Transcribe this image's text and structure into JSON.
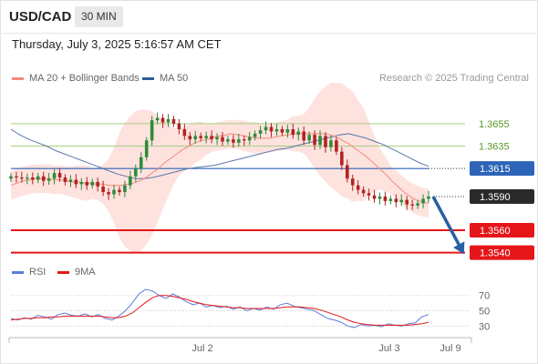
{
  "header": {
    "symbol": "USD/CAD",
    "interval": "30 MIN",
    "datetime": "Thursday, July 3, 2025 5:16:57 AM CET"
  },
  "legend": {
    "ma20_label": "MA 20 + Bollinger Bands",
    "ma50_label": "MA 50",
    "credit": "Research © 2025 Trading Central"
  },
  "rsi_legend": {
    "rsi_label": "RSI",
    "ma_label": "9MA"
  },
  "colors": {
    "up_candle": "#2e8b3a",
    "down_candle": "#b22222",
    "ma20": "#f28b7a",
    "bollinger_fill": "#fde2de",
    "ma50": "#5a78a8",
    "green_levels": "#a9cf82",
    "pivot_line": "#2d64b8",
    "support_line": "#e5161a",
    "arrow": "#2b5fa3",
    "rsi_line": "#5b7bdc",
    "rsi_ma": "#e5161a"
  },
  "chart_data": [
    {
      "type": "candlestick",
      "title": "USD/CAD 30 MIN",
      "x_labels": [
        "Jul 2",
        "Jul 3",
        "Jul 9"
      ],
      "ylim": [
        1.353,
        1.368
      ],
      "levels": [
        {
          "label": "1.3655",
          "value": 1.3655,
          "kind": "resistance"
        },
        {
          "label": "1.3635",
          "value": 1.3635,
          "kind": "resistance"
        },
        {
          "label": "1.3615",
          "value": 1.3615,
          "kind": "pivot"
        },
        {
          "label": "1.3590",
          "value": 1.359,
          "kind": "last"
        },
        {
          "label": "1.3560",
          "value": 1.356,
          "kind": "support"
        },
        {
          "label": "1.3540",
          "value": 1.354,
          "kind": "support"
        }
      ],
      "close": [
        1.3608,
        1.3607,
        1.3606,
        1.3607,
        1.3605,
        1.3608,
        1.3604,
        1.3606,
        1.3611,
        1.3607,
        1.3603,
        1.3605,
        1.3601,
        1.3603,
        1.36,
        1.3603,
        1.3599,
        1.3594,
        1.3592,
        1.3596,
        1.3594,
        1.36,
        1.3608,
        1.3615,
        1.3625,
        1.364,
        1.3658,
        1.366,
        1.3656,
        1.3659,
        1.3655,
        1.365,
        1.3644,
        1.3641,
        1.3644,
        1.3642,
        1.3644,
        1.3641,
        1.3643,
        1.3639,
        1.3641,
        1.3638,
        1.3641,
        1.364,
        1.3643,
        1.3646,
        1.3649,
        1.3652,
        1.3648,
        1.365,
        1.3647,
        1.365,
        1.3645,
        1.3648,
        1.364,
        1.3645,
        1.3636,
        1.3644,
        1.3634,
        1.364,
        1.363,
        1.3618,
        1.3606,
        1.36,
        1.3596,
        1.3593,
        1.3591,
        1.3588,
        1.359,
        1.3586,
        1.3588,
        1.3585,
        1.3587,
        1.3583,
        1.3582,
        1.3584,
        1.3588,
        1.359
      ],
      "ma20": [
        1.36,
        1.3602,
        1.3604,
        1.3605,
        1.3606,
        1.3606,
        1.3606,
        1.3605,
        1.3605,
        1.3604,
        1.3603,
        1.3603,
        1.3602,
        1.3602,
        1.3601,
        1.3601,
        1.36,
        1.36,
        1.36,
        1.3601,
        1.3602,
        1.3604,
        1.3607,
        1.3611,
        1.3615,
        1.362,
        1.3624,
        1.3628,
        1.3632,
        1.3635,
        1.3638,
        1.364,
        1.3641,
        1.3643,
        1.3644,
        1.3645,
        1.3646,
        1.3645,
        1.3644,
        1.3643,
        1.3642,
        1.3642,
        1.3642,
        1.3643,
        1.3644,
        1.3645,
        1.3646,
        1.3646,
        1.3646,
        1.3646,
        1.3646,
        1.3646,
        1.3645,
        1.3643,
        1.364,
        1.3637,
        1.3633,
        1.3629,
        1.3625,
        1.362,
        1.3615,
        1.361,
        1.3604,
        1.3599,
        1.3594,
        1.359,
        1.3587,
        1.3585,
        1.3584
      ],
      "ma50": [
        1.365,
        1.3645,
        1.3641,
        1.3638,
        1.3635,
        1.3631,
        1.3628,
        1.3625,
        1.3622,
        1.3619,
        1.3616,
        1.3613,
        1.361,
        1.3608,
        1.3606,
        1.3606,
        1.3607,
        1.3609,
        1.3611,
        1.3613,
        1.3615,
        1.3616,
        1.3617,
        1.3618,
        1.362,
        1.3622,
        1.3624,
        1.3626,
        1.3628,
        1.363,
        1.3632,
        1.3633,
        1.3635,
        1.3637,
        1.3639,
        1.3641,
        1.3643,
        1.3645,
        1.3646,
        1.3644,
        1.3642,
        1.3639,
        1.3636,
        1.3632,
        1.3628,
        1.3624,
        1.362,
        1.3617
      ]
    },
    {
      "type": "line",
      "title": "RSI",
      "x_labels": [
        "Jul 2",
        "Jul 3",
        "Jul 9"
      ],
      "y_ticks": [
        70,
        50,
        30
      ],
      "ylim": [
        15,
        85
      ],
      "rsi": [
        40,
        38,
        41,
        39,
        44,
        42,
        39,
        45,
        47,
        44,
        43,
        46,
        42,
        45,
        40,
        38,
        43,
        50,
        60,
        72,
        78,
        76,
        70,
        66,
        72,
        68,
        62,
        58,
        60,
        55,
        57,
        54,
        56,
        52,
        55,
        50,
        53,
        51,
        55,
        52,
        58,
        60,
        56,
        54,
        52,
        50,
        45,
        40,
        38,
        35,
        30,
        28,
        32,
        30,
        31,
        29,
        33,
        31,
        30,
        33,
        34,
        42,
        45
      ],
      "rsi_ma": [
        38,
        39,
        40,
        40,
        41,
        41,
        42,
        42,
        43,
        43,
        43,
        43,
        43,
        43,
        42,
        41,
        41,
        43,
        47,
        54,
        61,
        67,
        70,
        70,
        69,
        67,
        65,
        62,
        60,
        58,
        57,
        56,
        55,
        54,
        54,
        53,
        53,
        53,
        53,
        53,
        54,
        55,
        55,
        55,
        54,
        53,
        51,
        48,
        45,
        42,
        38,
        35,
        33,
        32,
        31,
        31,
        31,
        31,
        31,
        31,
        32,
        33,
        35
      ]
    }
  ]
}
